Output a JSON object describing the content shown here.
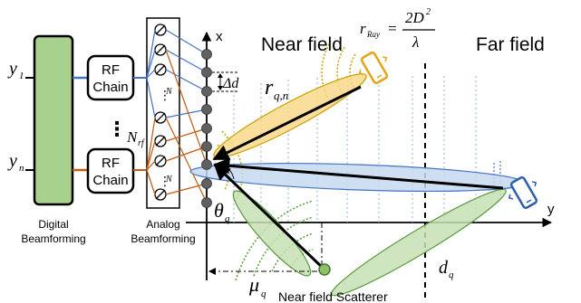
{
  "diagram": {
    "inputs": {
      "y1": "y",
      "y1_sub": "1",
      "yn": "y",
      "yn_sub": "n"
    },
    "rf_chain_label_line1": "RF",
    "rf_chain_label_line2": "Chain",
    "vdots": "⋮",
    "n_rf": "N",
    "n_rf_sub": "rf",
    "n_phase_top": "N",
    "n_phase_bottom": "N",
    "digital_label_line1": "Digital",
    "digital_label_line2": "Beamforming",
    "analog_label_line1": "Analog",
    "analog_label_line2": "Beamforming",
    "axis_x": "x",
    "axis_y": "y",
    "delta_d": "Δd",
    "near_field": "Near field",
    "far_field": "Far field",
    "r_ray_symbol": "r",
    "r_ray_sub": "Ray",
    "r_ray_eq": "=",
    "r_ray_num": "2D",
    "r_ray_num_sup": "2",
    "r_ray_den": "λ",
    "r_qn": "r",
    "r_qn_sub": "q,n",
    "theta": "θ",
    "theta_sub": "q",
    "mu": "μ",
    "mu_sub": "q",
    "d_q": "d",
    "d_q_sub": "q",
    "scatterer_label": "Near field Scatterer",
    "colors": {
      "digital_block": "#a9d18e",
      "near_beam": "#f8d98a",
      "far_beam": "#c5d9ef",
      "scatter_beam": "#c5e0b4",
      "phone_near": "#e6a313",
      "phone_far": "#2e5faa",
      "line_blue": "#4472c4",
      "line_orange": "#c55a11"
    }
  }
}
